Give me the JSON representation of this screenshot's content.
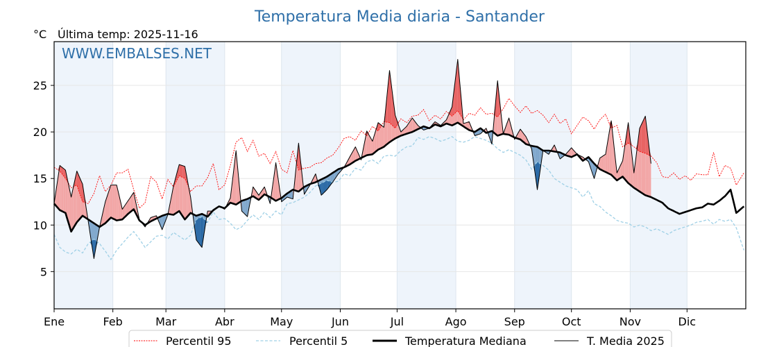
{
  "chart_data": {
    "type": "line",
    "title": "Temperatura Media diaria - Santander",
    "unit_label": "°C",
    "last_temp_label": "Última temp: 2025-11-16",
    "watermark": "WWW.EMBALSES.NET",
    "xlabel": "",
    "ylabel": "°C",
    "ylim": [
      1,
      29.7
    ],
    "xlim_days": [
      0,
      365
    ],
    "yticks": [
      5,
      10,
      15,
      20,
      25
    ],
    "month_labels": [
      "Ene",
      "Feb",
      "Mar",
      "Abr",
      "May",
      "Jun",
      "Jul",
      "Ago",
      "Sep",
      "Oct",
      "Nov",
      "Dic"
    ],
    "month_start_days": [
      0,
      31,
      59,
      90,
      120,
      151,
      181,
      212,
      243,
      273,
      304,
      334
    ],
    "grid": true,
    "legend_position": "bottom-center",
    "colors": {
      "p95": "#ff0000",
      "p5": "#9fd0e6",
      "median": "#000000",
      "current": "#000000",
      "above_fill": "#f2a6a6",
      "above_fill_strong": "#e86464",
      "below_fill": "#7fa7cc",
      "below_fill_strong": "#2b6aa6",
      "shade_band": "#eef4fb",
      "title": "#2e6fa8"
    },
    "sample_days": [
      0,
      3,
      6,
      9,
      12,
      15,
      18,
      21,
      24,
      27,
      30,
      33,
      36,
      39,
      42,
      45,
      48,
      51,
      54,
      57,
      60,
      63,
      66,
      69,
      72,
      75,
      78,
      81,
      84,
      87,
      90,
      93,
      96,
      99,
      102,
      105,
      108,
      111,
      114,
      117,
      120,
      123,
      126,
      129,
      132,
      135,
      138,
      141,
      144,
      147,
      150,
      153,
      156,
      159,
      162,
      165,
      168,
      171,
      174,
      177,
      180,
      183,
      186,
      189,
      192,
      195,
      198,
      201,
      204,
      207,
      210,
      213,
      216,
      219,
      222,
      225,
      228,
      231,
      234,
      237,
      240,
      243,
      246,
      249,
      252,
      255,
      258,
      261,
      264,
      267,
      270,
      273,
      276,
      279,
      282,
      285,
      288,
      291,
      294,
      297,
      300,
      303,
      306,
      309,
      312,
      315,
      318,
      321,
      324,
      327,
      330,
      333,
      336,
      339,
      342,
      345,
      348,
      351,
      354,
      357,
      360,
      364
    ],
    "series": [
      {
        "name": "Percentil 95",
        "values": [
          16.2,
          15.8,
          15.0,
          14.0,
          14.3,
          12.5,
          12.3,
          13.4,
          15.3,
          13.6,
          14.3,
          15.6,
          15.6,
          16.0,
          13.8,
          11.8,
          12.4,
          15.2,
          14.6,
          12.8,
          14.9,
          14.1,
          15.3,
          15.0,
          13.6,
          14.2,
          14.2,
          15.1,
          16.6,
          13.8,
          14.3,
          16.4,
          18.9,
          19.4,
          17.9,
          19.1,
          17.4,
          17.7,
          16.6,
          17.9,
          16.0,
          15.6,
          18.0,
          15.9,
          16.1,
          16.2,
          16.6,
          16.7,
          17.2,
          17.5,
          18.3,
          19.3,
          19.5,
          19.1,
          20.1,
          19.6,
          20.6,
          20.1,
          21.1,
          21.0,
          20.4,
          21.4,
          21.0,
          21.7,
          21.8,
          22.4,
          21.2,
          21.8,
          21.4,
          22.2,
          21.7,
          22.3,
          21.3,
          22.0,
          21.8,
          22.6,
          21.9,
          22.0,
          21.6,
          22.5,
          23.6,
          22.8,
          22.1,
          22.8,
          22.0,
          22.3,
          21.8,
          21.0,
          21.9,
          20.9,
          21.4,
          19.8,
          20.7,
          21.6,
          21.2,
          20.3,
          21.3,
          21.9,
          20.4,
          20.7,
          18.4,
          18.8,
          18.4,
          17.9,
          17.7,
          17.4,
          16.7,
          15.2,
          15.1,
          15.6,
          14.9,
          15.3,
          14.8,
          15.5,
          15.4,
          15.4,
          17.8,
          15.2,
          16.4,
          16.1,
          14.3,
          15.6
        ],
        "style": "dotted"
      },
      {
        "name": "Percentil 5",
        "values": [
          9.0,
          7.6,
          7.1,
          6.9,
          7.4,
          7.0,
          8.0,
          8.5,
          8.0,
          7.2,
          6.3,
          7.3,
          8.0,
          8.7,
          9.3,
          8.5,
          7.6,
          8.2,
          8.8,
          8.9,
          8.5,
          9.2,
          8.8,
          8.4,
          8.9,
          10.6,
          10.9,
          10.3,
          11.4,
          10.6,
          10.7,
          10.2,
          9.5,
          9.8,
          10.5,
          11.1,
          10.6,
          11.4,
          10.8,
          11.5,
          11.1,
          12.3,
          12.4,
          12.7,
          13.0,
          13.5,
          14.2,
          14.5,
          14.8,
          14.6,
          14.7,
          15.5,
          15.3,
          16.1,
          15.9,
          16.8,
          17.0,
          16.6,
          17.4,
          17.5,
          17.4,
          18.0,
          18.4,
          18.5,
          19.4,
          19.2,
          19.5,
          19.3,
          19.0,
          19.2,
          19.5,
          19.0,
          18.9,
          19.1,
          19.5,
          19.3,
          19.1,
          18.8,
          18.2,
          17.8,
          18.1,
          17.8,
          17.5,
          17.0,
          16.0,
          16.8,
          16.4,
          15.9,
          15.0,
          14.6,
          14.2,
          14.0,
          13.8,
          13.0,
          13.7,
          12.3,
          12.0,
          11.4,
          11.0,
          10.5,
          10.3,
          10.2,
          9.8,
          10.0,
          9.8,
          9.4,
          9.6,
          9.3,
          9.0,
          9.4,
          9.6,
          9.8,
          10.0,
          10.3,
          10.4,
          10.6,
          10.1,
          10.6,
          10.4,
          10.6,
          9.7,
          7.3
        ],
        "style": "dashed"
      },
      {
        "name": "Temperatura Mediana",
        "values": [
          12.3,
          11.6,
          11.3,
          9.3,
          10.3,
          11.0,
          10.6,
          10.2,
          9.8,
          10.2,
          10.8,
          10.5,
          10.6,
          11.2,
          11.7,
          10.5,
          10.0,
          10.4,
          10.7,
          11.0,
          11.2,
          11.1,
          11.5,
          10.6,
          11.3,
          11.0,
          11.2,
          10.9,
          11.6,
          12.0,
          11.8,
          12.4,
          12.2,
          12.6,
          12.8,
          13.1,
          12.7,
          13.3,
          13.0,
          12.6,
          12.9,
          13.4,
          13.8,
          13.6,
          14.1,
          14.4,
          14.6,
          14.9,
          15.2,
          15.6,
          16.0,
          16.2,
          16.5,
          16.9,
          17.2,
          17.5,
          17.6,
          18.1,
          18.4,
          18.9,
          19.3,
          19.6,
          19.8,
          20.0,
          20.3,
          20.6,
          20.4,
          20.8,
          20.6,
          20.9,
          20.7,
          21.0,
          20.6,
          20.2,
          20.0,
          20.4,
          19.9,
          20.1,
          19.6,
          19.8,
          19.7,
          19.4,
          19.2,
          18.7,
          18.5,
          18.4,
          18.0,
          18.0,
          17.9,
          17.8,
          17.5,
          17.3,
          17.6,
          16.9,
          17.3,
          16.6,
          16.0,
          15.7,
          15.4,
          14.8,
          15.2,
          14.5,
          14.0,
          13.6,
          13.2,
          13.0,
          12.7,
          12.4,
          11.8,
          11.5,
          11.2,
          11.4,
          11.6,
          11.8,
          11.9,
          12.3,
          12.2,
          12.6,
          13.1,
          13.8,
          11.3,
          12.0
        ],
        "style": "thick"
      },
      {
        "name": "T. Media 2025",
        "values": [
          12.3,
          16.4,
          15.9,
          13.0,
          15.8,
          14.4,
          10.4,
          6.4,
          9.8,
          12.5,
          14.3,
          14.3,
          11.7,
          12.6,
          13.5,
          10.6,
          9.8,
          10.8,
          11.0,
          9.5,
          11.1,
          14.2,
          16.5,
          16.3,
          13.0,
          8.4,
          7.6,
          11.5,
          11.5,
          12.0,
          11.7,
          12.9,
          18.0,
          11.5,
          10.9,
          14.1,
          13.2,
          14.1,
          12.3,
          16.7,
          12.5,
          13.0,
          12.8,
          18.8,
          13.3,
          14.3,
          15.5,
          13.2,
          13.8,
          14.6,
          15.5,
          16.2,
          17.3,
          18.4,
          17.0,
          20.1,
          19.0,
          21.0,
          20.5,
          26.6,
          21.8,
          20.0,
          20.6,
          21.5,
          20.7,
          20.2,
          20.4,
          21.1,
          20.7,
          21.3,
          22.7,
          27.8,
          20.9,
          21.1,
          19.6,
          19.8,
          20.4,
          18.7,
          25.5,
          19.8,
          21.5,
          19.2,
          20.3,
          19.5,
          18.2,
          13.8,
          18.0,
          17.6,
          18.6,
          17.1,
          17.6,
          18.3,
          17.6,
          17.3,
          16.8,
          15.0,
          17.2,
          17.6,
          21.2,
          15.6,
          16.9,
          21.0,
          15.6,
          20.4,
          21.7,
          16.6,
          null,
          null,
          null,
          null,
          null,
          null,
          null,
          null,
          null,
          null,
          null,
          null,
          null,
          null,
          null,
          null
        ],
        "style": "thin"
      }
    ]
  }
}
